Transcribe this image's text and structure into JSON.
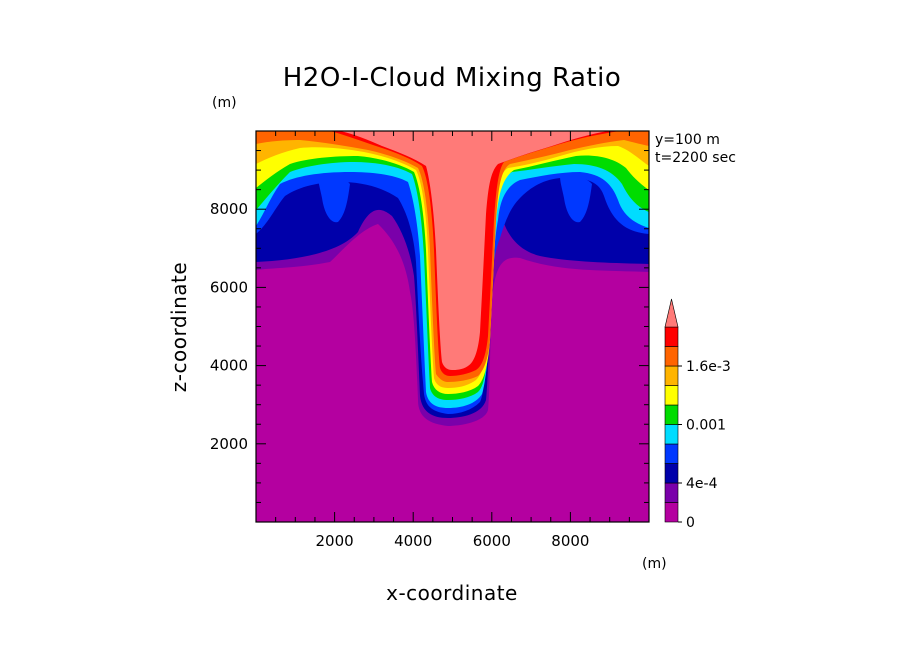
{
  "chart_data": {
    "type": "heatmap",
    "title": "H2O-I-Cloud Mixing Ratio",
    "xlabel": "x-coordinate",
    "ylabel": "z-coordinate",
    "x_unit": "(m)",
    "y_unit": "(m)",
    "annotations": [
      "y=100 m",
      "t=2200 sec"
    ],
    "xlim": [
      0,
      10000
    ],
    "ylim": [
      0,
      10000
    ],
    "x_ticks": [
      2000,
      4000,
      6000,
      8000
    ],
    "y_ticks": [
      2000,
      4000,
      6000,
      8000
    ],
    "colorbar": {
      "levels": [
        0,
        0.0002,
        0.0004,
        0.0006,
        0.0008,
        0.001,
        0.0012,
        0.0014,
        0.0016,
        0.0018,
        0.002
      ],
      "labels": [
        {
          "value": 0,
          "text": "0"
        },
        {
          "value": 0.0004,
          "text": "4e-4"
        },
        {
          "value": 0.001,
          "text": "0.001"
        },
        {
          "value": 0.0016,
          "text": "1.6e-3"
        }
      ],
      "colors": [
        "#b400a0",
        "#7a00aa",
        "#0000aa",
        "#0038ff",
        "#00dcff",
        "#00dc00",
        "#ffff00",
        "#ffb400",
        "#ff6400",
        "#ff0000",
        "#ff7a78"
      ],
      "extend": "max"
    }
  }
}
